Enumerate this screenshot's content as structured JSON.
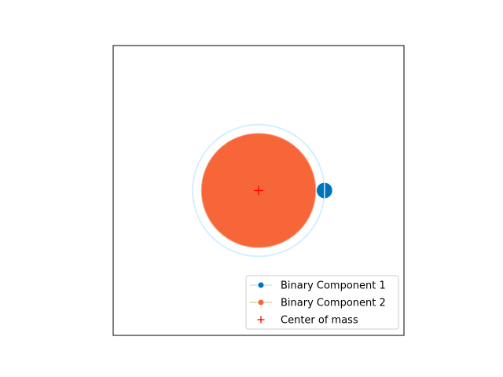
{
  "chart_data": {
    "type": "scatter",
    "title": "",
    "xlabel": "",
    "ylabel": "",
    "xlim": [
      -1.5,
      1.5
    ],
    "ylim": [
      -1.5,
      1.5
    ],
    "aspect": "equal",
    "axis_ticks": false,
    "grid": false,
    "legend_position": "lower-right",
    "series": [
      {
        "name": "Binary Component 1",
        "color": "#0072BD",
        "orbit_color": "#d4efff",
        "orbit_radius": 0.68,
        "body_radius": 0.08,
        "position": {
          "x": 0.68,
          "y": 0.0
        }
      },
      {
        "name": "Binary Component 2",
        "color": "#f76638",
        "orbit_color": "#e6ddc4",
        "orbit_radius": 0.01,
        "body_radius": 0.59,
        "position": {
          "x": 0.0,
          "y": 0.0
        }
      },
      {
        "name": "Center of mass",
        "color": "#ff0000",
        "marker": "+",
        "position": {
          "x": 0.0,
          "y": 0.0
        }
      }
    ]
  }
}
